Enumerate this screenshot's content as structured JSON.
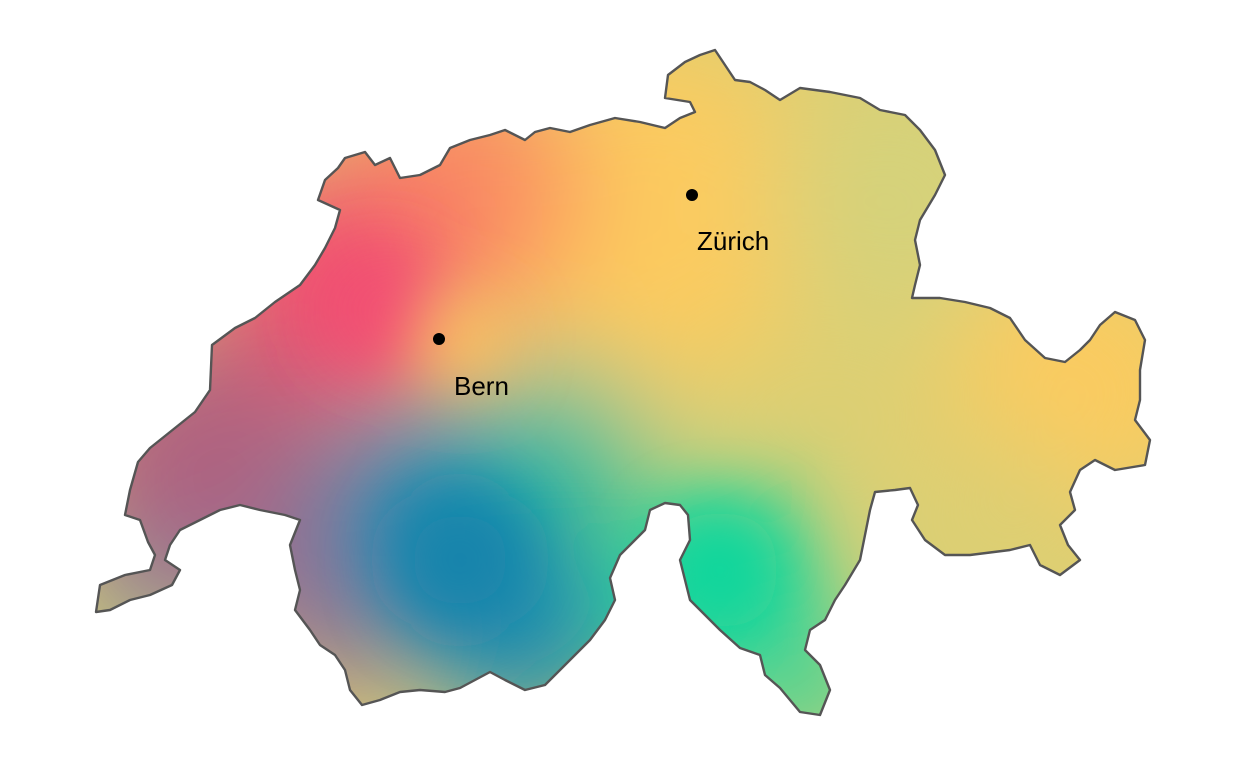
{
  "map": {
    "colors": {
      "pink": "#f05070",
      "orange": "#fa8c62",
      "yellow": "#fccb5f",
      "olive": "#dccf73",
      "blue": "#1a8ab0",
      "mauve": "#9b6d8e",
      "teal": "#14d49c",
      "border": "#555555"
    },
    "cities": [
      {
        "label": "Zürich",
        "marker": "city-dot"
      },
      {
        "label": "Bern",
        "marker": "city-dot"
      }
    ]
  }
}
